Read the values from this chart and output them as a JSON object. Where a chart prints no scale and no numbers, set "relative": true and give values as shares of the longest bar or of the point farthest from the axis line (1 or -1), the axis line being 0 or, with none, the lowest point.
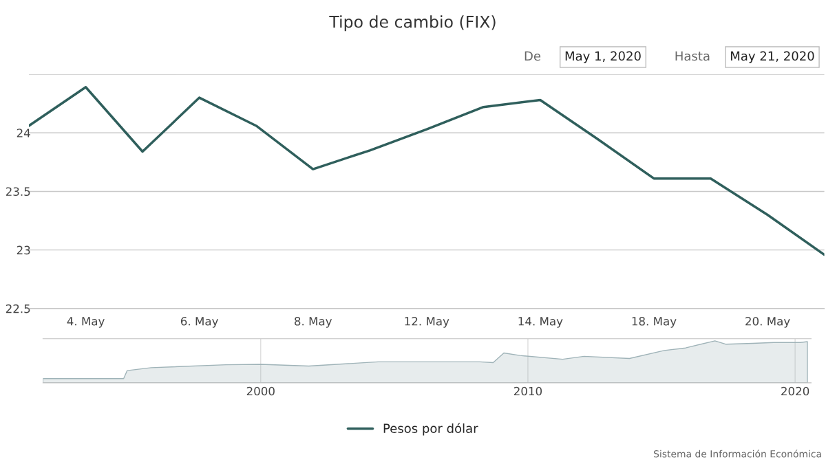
{
  "chart_data": [
    {
      "type": "line",
      "title": "Tipo de cambio (FIX)",
      "categories": [
        null,
        "4. May",
        null,
        "6. May",
        null,
        "8. May",
        null,
        "12. May",
        null,
        "14. May",
        null,
        "18. May",
        null,
        "20. May",
        null
      ],
      "series": [
        {
          "name": "Pesos por dólar",
          "color": "#2f5f5c",
          "values": [
            24.06,
            24.39,
            23.84,
            24.3,
            24.06,
            23.69,
            23.85,
            24.03,
            24.22,
            24.28,
            23.95,
            23.61,
            23.61,
            23.3,
            22.96
          ]
        }
      ],
      "ylim": [
        22.5,
        24.5
      ],
      "yticks": [
        22.5,
        23,
        23.5,
        24,
        {
          "value": 24.5,
          "label": null
        }
      ],
      "grid": "y",
      "legend": "bottom",
      "marker": "none",
      "line_style": "solid",
      "annotations": [
        "De",
        "May 1, 2020",
        "Hasta",
        "May 21, 2020",
        "Sistema de Información Económica"
      ]
    },
    {
      "type": "area",
      "relative": true,
      "grid": "x",
      "tick_labels": "x",
      "x": [
        1991.85,
        1994.87,
        1995.0,
        1995.9,
        1998.7,
        2000.0,
        2001.8,
        2004.4,
        2008.2,
        2008.7,
        2009.1,
        2009.7,
        2011.3,
        2012.1,
        2013.8,
        2015.1,
        2015.9,
        2017.0,
        2017.4,
        2018.4,
        2019.2,
        2020.2,
        2020.46
      ],
      "series": [
        {
          "color": "#9fb3b8",
          "values": [
            0.1,
            0.1,
            0.29,
            0.36,
            0.43,
            0.44,
            0.4,
            0.5,
            0.5,
            0.48,
            0.71,
            0.65,
            0.56,
            0.63,
            0.58,
            0.77,
            0.83,
            1.0,
            0.92,
            0.94,
            0.96,
            0.96,
            0.98
          ]
        }
      ],
      "xlim": [
        1991.85,
        2020.6
      ],
      "xticks": [
        2000,
        2010,
        2020
      ]
    }
  ]
}
